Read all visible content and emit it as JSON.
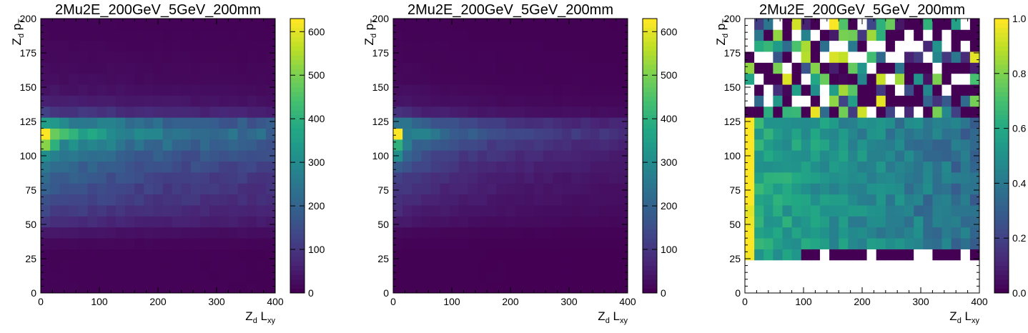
{
  "chart_data": [
    {
      "type": "heatmap",
      "title": "2Mu2E_200GeV_5GeV_200mm",
      "xlabel": {
        "main": "Z",
        "sub": "d",
        "rest": "L",
        "rest_sub": "xy"
      },
      "ylabel": {
        "main": "Z",
        "sub": "d",
        "rest": "p",
        "rest_sub": "T"
      },
      "xlim": [
        0,
        400
      ],
      "ylim": [
        0,
        200
      ],
      "xticks": [
        0,
        100,
        200,
        300,
        400
      ],
      "yticks": [
        0,
        25,
        50,
        75,
        100,
        125,
        150,
        175,
        200
      ],
      "nx": 25,
      "ny": 25,
      "colorbar": {
        "min": 0,
        "max": 630,
        "ticks": [
          0,
          100,
          200,
          300,
          400,
          500,
          600
        ],
        "labels": [
          "0",
          "100",
          "200",
          "300",
          "400",
          "500",
          "600"
        ]
      },
      "description_of_values": "Counts per bin. Band peaks near pT 88-112 and low Lxy, decreasing with Lxy.",
      "row_profile": [
        5,
        5,
        5,
        5,
        15,
        40,
        90,
        120,
        150,
        170,
        200,
        230,
        270,
        330,
        415,
        330,
        110,
        55,
        35,
        25,
        20,
        15,
        12,
        8,
        6
      ],
      "lxy_decay": 0.5,
      "peak_boost": [
        [
          13,
          0,
          1.5
        ],
        [
          13,
          1,
          1.2
        ],
        [
          14,
          0,
          1.45
        ],
        [
          14,
          1,
          1.4
        ],
        [
          14,
          2,
          1.35
        ]
      ]
    },
    {
      "type": "heatmap",
      "title": "2Mu2E_200GeV_5GeV_200mm",
      "xlabel": {
        "main": "Z",
        "sub": "d",
        "rest": "L",
        "rest_sub": "xy"
      },
      "ylabel": {
        "main": "Z",
        "sub": "d",
        "rest": "p",
        "rest_sub": "T"
      },
      "xlim": [
        0,
        400
      ],
      "ylim": [
        0,
        200
      ],
      "xticks": [
        0,
        100,
        200,
        300,
        400
      ],
      "yticks": [
        0,
        25,
        50,
        75,
        100,
        125,
        150,
        175,
        200
      ],
      "nx": 25,
      "ny": 25,
      "colorbar": {
        "min": 0,
        "max": 630,
        "ticks": [
          0,
          100,
          200,
          300,
          400,
          500,
          600
        ],
        "labels": [
          "0",
          "100",
          "200",
          "300",
          "400",
          "500",
          "600"
        ]
      },
      "description_of_values": "Counts per bin; concentrated at low Lxy with a strong decay along Lxy.",
      "row_profile": [
        2,
        2,
        2,
        2,
        5,
        15,
        50,
        70,
        90,
        110,
        130,
        160,
        200,
        260,
        340,
        250,
        80,
        40,
        25,
        15,
        12,
        10,
        8,
        5,
        4
      ],
      "lxy_decay": 1.5,
      "peak_boost": [
        [
          13,
          0,
          1.7
        ],
        [
          14,
          0,
          1.8
        ],
        [
          12,
          0,
          1.5
        ]
      ]
    },
    {
      "type": "heatmap",
      "title": "2Mu2E_200GeV_5GeV_200mm",
      "xlabel": {
        "main": "Z",
        "sub": "d",
        "rest": "L",
        "rest_sub": "xy"
      },
      "ylabel": {
        "main": "Z",
        "sub": "d",
        "rest": "p",
        "rest_sub": "T"
      },
      "xlim": [
        0,
        400
      ],
      "ylim": [
        0,
        200
      ],
      "xticks": [
        0,
        100,
        200,
        300,
        400
      ],
      "yticks": [
        0,
        25,
        50,
        75,
        100,
        125,
        150,
        175,
        200
      ],
      "nx": 25,
      "ny": 25,
      "colorbar": {
        "min": 0,
        "max": 1.0,
        "ticks": [
          0,
          0.2,
          0.4,
          0.6,
          0.8,
          1.0
        ],
        "labels": [
          "0.0",
          "0.2",
          "0.4",
          "0.6",
          "0.8",
          "1.0"
        ]
      },
      "description_of_values": "Efficiency ratio (panel 2 / panel 1); empty bins are white, no entries below pT 25.",
      "empty_rows_below": 3
    }
  ]
}
